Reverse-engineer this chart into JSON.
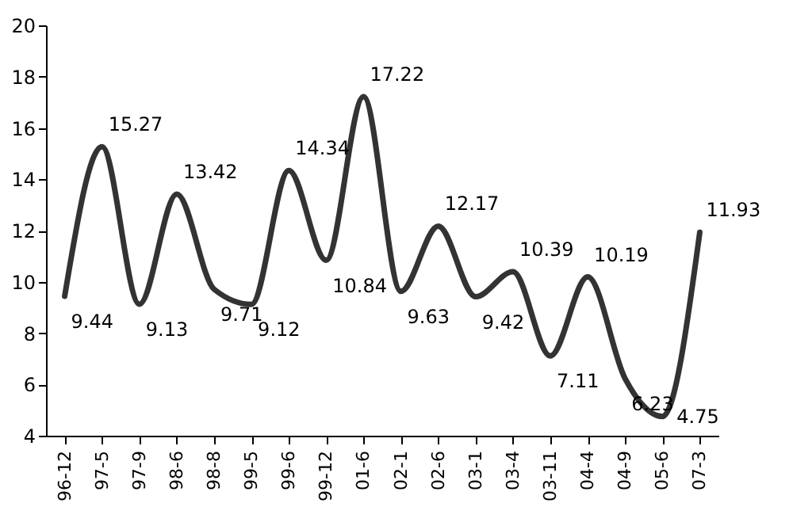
{
  "chart_data": {
    "type": "line",
    "categories": [
      "96-12",
      "97-5",
      "97-9",
      "98-6",
      "98-8",
      "99-5",
      "99-6",
      "99-12",
      "01-6",
      "02-1",
      "02-6",
      "03-1",
      "03-4",
      "03-11",
      "04-4",
      "04-9",
      "05-6",
      "07-3"
    ],
    "values": [
      9.44,
      15.27,
      9.13,
      13.42,
      9.71,
      9.12,
      14.34,
      10.84,
      17.22,
      9.63,
      12.17,
      9.42,
      10.39,
      7.11,
      10.19,
      6.23,
      4.75,
      11.93
    ],
    "color": "#333333",
    "ylim": [
      4,
      20
    ],
    "yticks": [
      4,
      6,
      8,
      10,
      12,
      14,
      16,
      18,
      20
    ],
    "grid": false,
    "data_labels": true,
    "marker": "none",
    "line_style": "solid"
  }
}
